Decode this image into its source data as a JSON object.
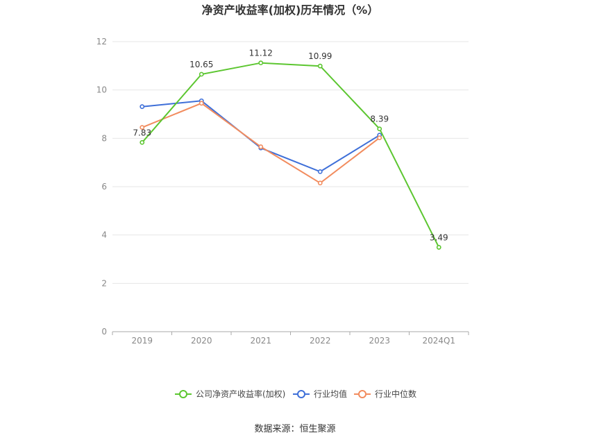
{
  "chart_data": {
    "type": "line",
    "title": "净资产收益率(加权)历年情况（%）",
    "categories": [
      "2019",
      "2020",
      "2021",
      "2022",
      "2023",
      "2024Q1"
    ],
    "ylim": [
      0,
      12
    ],
    "yticks": [
      0,
      2,
      4,
      6,
      8,
      10,
      12
    ],
    "grid": true,
    "legend_position": "bottom-center",
    "series": [
      {
        "name": "公司净资产收益率(加权)",
        "color": "#5cc630",
        "values": [
          7.83,
          10.65,
          11.12,
          10.99,
          8.39,
          3.49
        ],
        "labels": [
          "7.83",
          "10.65",
          "11.12",
          "10.99",
          "8.39",
          "3.49"
        ]
      },
      {
        "name": "行业均值",
        "color": "#3e6fd8",
        "values": [
          9.31,
          9.55,
          7.6,
          6.62,
          8.13,
          null
        ]
      },
      {
        "name": "行业中位数",
        "color": "#f28c5e",
        "values": [
          8.45,
          9.45,
          7.65,
          6.15,
          8.02,
          null
        ]
      }
    ]
  },
  "footer": {
    "source": "数据来源：恒生聚源"
  }
}
